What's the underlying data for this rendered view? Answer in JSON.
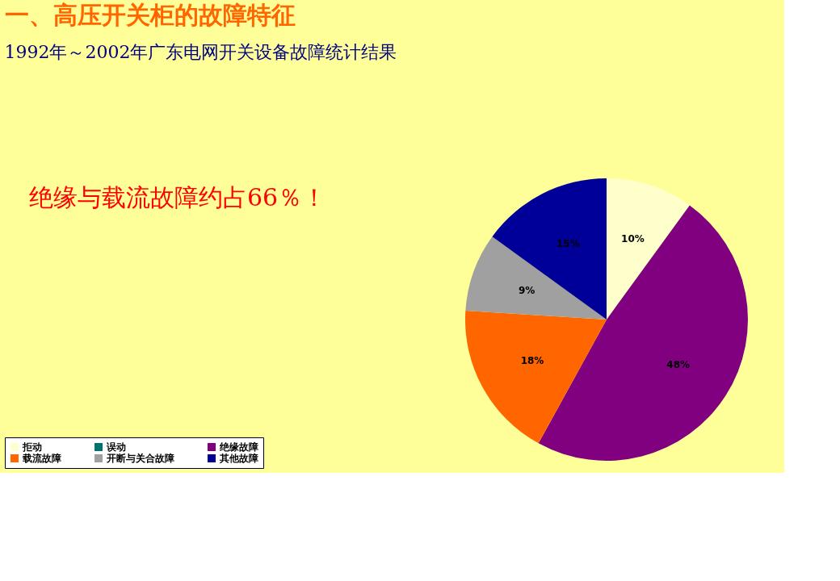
{
  "chart_data": {
    "type": "pie",
    "title": "一、高压开关柜的故障特征",
    "subtitle": "1992年～2002年广东电网开关设备故障统计结果",
    "annotations": [
      "绝缘与载流故障约占66％！"
    ],
    "categories": [
      "拒动",
      "误动",
      "绝缘故障",
      "载流故障",
      "开断与关合故障",
      "其他故障"
    ],
    "values": [
      10,
      0,
      48,
      18,
      9,
      15
    ],
    "value_labels": [
      "10%",
      null,
      "48%",
      "18%",
      "9%",
      "15%"
    ],
    "colors": [
      "#ffffcc",
      "#00736e",
      "#800080",
      "#ff6600",
      "#a0a0a0",
      "#000099"
    ],
    "legend": "bottom"
  }
}
